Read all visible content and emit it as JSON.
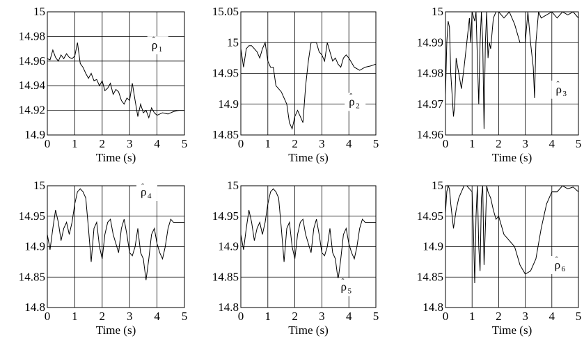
{
  "chart_data": [
    {
      "type": "line",
      "xlabel": "Time (s)",
      "label": {
        "base": "ρ",
        "accent": "ˆ",
        "sub": "1"
      },
      "xlim": [
        0,
        5
      ],
      "ylim": [
        14.9,
        15
      ],
      "xticks": [
        "0",
        "1",
        "2",
        "3",
        "4",
        "5"
      ],
      "yticks": [
        "15",
        "14.98",
        "14.96",
        "14.94",
        "14.92",
        "14.9"
      ],
      "grid": true,
      "series": [
        {
          "x": [
            0,
            0.1,
            0.2,
            0.3,
            0.4,
            0.5,
            0.6,
            0.7,
            0.8,
            0.9,
            1.0,
            1.1,
            1.2,
            1.3,
            1.4,
            1.5,
            1.6,
            1.7,
            1.8,
            1.9,
            2.0,
            2.1,
            2.2,
            2.3,
            2.4,
            2.5,
            2.6,
            2.7,
            2.8,
            2.9,
            3.0,
            3.1,
            3.2,
            3.3,
            3.4,
            3.5,
            3.6,
            3.7,
            3.8,
            3.9,
            4.0,
            4.2,
            4.4,
            4.6,
            4.8,
            5.0
          ],
          "y": [
            14.962,
            14.961,
            14.969,
            14.963,
            14.96,
            14.965,
            14.962,
            14.966,
            14.963,
            14.962,
            14.964,
            14.975,
            14.958,
            14.955,
            14.95,
            14.946,
            14.95,
            14.944,
            14.945,
            14.94,
            14.944,
            14.936,
            14.938,
            14.942,
            14.933,
            14.937,
            14.935,
            14.928,
            14.925,
            14.93,
            14.928,
            14.942,
            14.928,
            14.915,
            14.925,
            14.918,
            14.92,
            14.914,
            14.922,
            14.918,
            14.916,
            14.918,
            14.917,
            14.919,
            14.92,
            14.92
          ]
        }
      ]
    },
    {
      "type": "line",
      "xlabel": "Time (s)",
      "label": {
        "base": "ρ",
        "accent": "ˆ",
        "sub": "2"
      },
      "xlim": [
        0,
        5
      ],
      "ylim": [
        14.85,
        15.05
      ],
      "xticks": [
        "0",
        "1",
        "2",
        "3",
        "4",
        "5"
      ],
      "yticks": [
        "15.05",
        "15",
        "14.95",
        "14.9",
        "14.85"
      ],
      "grid": true,
      "series": [
        {
          "x": [
            0,
            0.1,
            0.2,
            0.3,
            0.4,
            0.5,
            0.6,
            0.7,
            0.8,
            0.9,
            1.0,
            1.1,
            1.2,
            1.3,
            1.4,
            1.5,
            1.6,
            1.7,
            1.8,
            1.9,
            2.0,
            2.1,
            2.2,
            2.3,
            2.4,
            2.5,
            2.6,
            2.7,
            2.8,
            2.9,
            3.0,
            3.1,
            3.2,
            3.3,
            3.4,
            3.5,
            3.6,
            3.7,
            3.8,
            3.9,
            4.0,
            4.2,
            4.4,
            4.6,
            4.8,
            5.0
          ],
          "y": [
            14.99,
            14.96,
            14.99,
            14.995,
            14.995,
            14.99,
            14.985,
            14.975,
            14.99,
            15.0,
            14.97,
            14.96,
            14.96,
            14.93,
            14.925,
            14.92,
            14.91,
            14.9,
            14.87,
            14.86,
            14.88,
            14.89,
            14.88,
            14.87,
            14.93,
            14.97,
            15.0,
            15.0,
            15.0,
            14.985,
            14.98,
            14.97,
            15.0,
            14.985,
            14.97,
            14.975,
            14.965,
            14.96,
            14.975,
            14.98,
            14.975,
            14.96,
            14.955,
            14.96,
            14.962,
            14.965
          ]
        }
      ]
    },
    {
      "type": "line",
      "xlabel": "Time (s)",
      "label": {
        "base": "ρ",
        "accent": "ˆ",
        "sub": "3"
      },
      "xlim": [
        0,
        5
      ],
      "ylim": [
        14.96,
        15
      ],
      "xticks": [
        "0",
        "1",
        "2",
        "3",
        "4",
        "5"
      ],
      "yticks": [
        "15",
        "14.99",
        "14.98",
        "14.97",
        "14.96"
      ],
      "grid": true,
      "series": [
        {
          "x": [
            0,
            0.05,
            0.1,
            0.15,
            0.2,
            0.3,
            0.35,
            0.4,
            0.5,
            0.6,
            0.7,
            0.8,
            0.9,
            0.95,
            1.0,
            1.1,
            1.15,
            1.2,
            1.25,
            1.3,
            1.35,
            1.4,
            1.45,
            1.5,
            1.55,
            1.6,
            1.65,
            1.7,
            1.8,
            1.9,
            2.0,
            2.2,
            2.4,
            2.6,
            2.8,
            3.0,
            3.05,
            3.1,
            3.2,
            3.3,
            3.35,
            3.4,
            3.5,
            3.6,
            3.8,
            4.0,
            4.2,
            4.4,
            4.6,
            4.8,
            5.0
          ],
          "y": [
            14.973,
            14.99,
            14.997,
            14.995,
            14.98,
            14.966,
            14.97,
            14.985,
            14.98,
            14.975,
            14.982,
            14.99,
            14.998,
            14.99,
            15.0,
            14.997,
            15.0,
            14.985,
            14.97,
            14.99,
            15.0,
            14.99,
            14.962,
            14.99,
            15.0,
            14.985,
            14.99,
            14.988,
            14.998,
            15.0,
            15.0,
            14.998,
            15.0,
            14.996,
            14.99,
            14.99,
            14.995,
            15.0,
            14.99,
            14.982,
            14.972,
            14.99,
            15.0,
            14.998,
            14.999,
            15.0,
            14.998,
            15.0,
            14.999,
            15.0,
            14.998
          ]
        }
      ]
    },
    {
      "type": "line",
      "xlabel": "Time (s)",
      "label": {
        "base": "ρ",
        "accent": "ˆ",
        "sub": "4"
      },
      "xlim": [
        0,
        5
      ],
      "ylim": [
        14.8,
        15
      ],
      "xticks": [
        "0",
        "1",
        "2",
        "3",
        "4",
        "5"
      ],
      "yticks": [
        "15",
        "14.95",
        "14.9",
        "14.85",
        "14.8"
      ],
      "grid": true,
      "series": [
        {
          "x": [
            0,
            0.1,
            0.2,
            0.3,
            0.4,
            0.5,
            0.6,
            0.7,
            0.8,
            0.9,
            1.0,
            1.1,
            1.2,
            1.3,
            1.4,
            1.5,
            1.6,
            1.7,
            1.8,
            1.9,
            2.0,
            2.1,
            2.2,
            2.3,
            2.4,
            2.5,
            2.6,
            2.7,
            2.8,
            2.9,
            3.0,
            3.1,
            3.2,
            3.3,
            3.4,
            3.5,
            3.6,
            3.7,
            3.8,
            3.9,
            4.0,
            4.1,
            4.2,
            4.3,
            4.4,
            4.5,
            4.6,
            4.8,
            5.0
          ],
          "y": [
            14.92,
            14.895,
            14.93,
            14.96,
            14.94,
            14.91,
            14.93,
            14.94,
            14.92,
            14.94,
            14.97,
            14.99,
            14.995,
            14.99,
            14.98,
            14.93,
            14.875,
            14.93,
            14.94,
            14.9,
            14.88,
            14.92,
            14.94,
            14.945,
            14.92,
            14.905,
            14.89,
            14.93,
            14.945,
            14.92,
            14.89,
            14.885,
            14.9,
            14.93,
            14.89,
            14.88,
            14.845,
            14.88,
            14.92,
            14.93,
            14.905,
            14.89,
            14.88,
            14.9,
            14.93,
            14.945,
            14.94,
            14.94,
            14.94
          ]
        }
      ]
    },
    {
      "type": "line",
      "xlabel": "Time (s)",
      "label": {
        "base": "ρ",
        "accent": "ˆ",
        "sub": "5"
      },
      "xlim": [
        0,
        5
      ],
      "ylim": [
        14.8,
        15
      ],
      "xticks": [
        "0",
        "1",
        "2",
        "3",
        "4",
        "5"
      ],
      "yticks": [
        "15",
        "14.95",
        "14.9",
        "14.85",
        "14.8"
      ],
      "grid": true,
      "series": [
        {
          "x": [
            0,
            0.1,
            0.2,
            0.3,
            0.4,
            0.5,
            0.6,
            0.7,
            0.8,
            0.9,
            1.0,
            1.1,
            1.2,
            1.3,
            1.4,
            1.5,
            1.6,
            1.7,
            1.8,
            1.9,
            2.0,
            2.1,
            2.2,
            2.3,
            2.4,
            2.5,
            2.6,
            2.7,
            2.8,
            2.9,
            3.0,
            3.1,
            3.2,
            3.3,
            3.4,
            3.5,
            3.6,
            3.7,
            3.8,
            3.9,
            4.0,
            4.1,
            4.2,
            4.3,
            4.4,
            4.5,
            4.6,
            4.8,
            5.0
          ],
          "y": [
            14.92,
            14.895,
            14.93,
            14.96,
            14.94,
            14.91,
            14.93,
            14.94,
            14.92,
            14.94,
            14.97,
            14.99,
            14.995,
            14.99,
            14.98,
            14.93,
            14.875,
            14.93,
            14.94,
            14.9,
            14.88,
            14.92,
            14.94,
            14.945,
            14.92,
            14.905,
            14.89,
            14.93,
            14.945,
            14.92,
            14.89,
            14.885,
            14.9,
            14.93,
            14.89,
            14.88,
            14.845,
            14.88,
            14.92,
            14.93,
            14.905,
            14.89,
            14.88,
            14.9,
            14.93,
            14.945,
            14.94,
            14.94,
            14.94
          ]
        }
      ]
    },
    {
      "type": "line",
      "xlabel": "Time (s)",
      "label": {
        "base": "ρ",
        "accent": "ˆ",
        "sub": "6"
      },
      "xlim": [
        0,
        5
      ],
      "ylim": [
        14.8,
        15
      ],
      "xticks": [
        "0",
        "1",
        "2",
        "3",
        "4",
        "5"
      ],
      "yticks": [
        "15",
        "14.95",
        "14.9",
        "14.85",
        "14.8"
      ],
      "grid": true,
      "series": [
        {
          "x": [
            0,
            0.05,
            0.1,
            0.15,
            0.2,
            0.3,
            0.4,
            0.5,
            0.6,
            0.7,
            0.8,
            0.9,
            1.0,
            1.05,
            1.1,
            1.15,
            1.2,
            1.25,
            1.3,
            1.35,
            1.4,
            1.45,
            1.5,
            1.55,
            1.6,
            1.7,
            1.8,
            1.9,
            2.0,
            2.2,
            2.4,
            2.6,
            2.8,
            3.0,
            3.2,
            3.4,
            3.6,
            3.8,
            4.0,
            4.2,
            4.4,
            4.6,
            4.8,
            5.0
          ],
          "y": [
            14.955,
            14.99,
            15.0,
            14.995,
            14.97,
            14.93,
            14.96,
            14.98,
            14.99,
            15.0,
            15.0,
            14.995,
            14.99,
            14.93,
            14.84,
            14.95,
            15.0,
            14.9,
            14.86,
            14.98,
            15.0,
            14.87,
            14.93,
            15.0,
            14.99,
            14.98,
            14.96,
            14.945,
            14.95,
            14.92,
            14.91,
            14.9,
            14.87,
            14.855,
            14.86,
            14.88,
            14.93,
            14.97,
            14.99,
            14.99,
            15.0,
            14.995,
            14.998,
            14.99
          ]
        }
      ]
    }
  ]
}
